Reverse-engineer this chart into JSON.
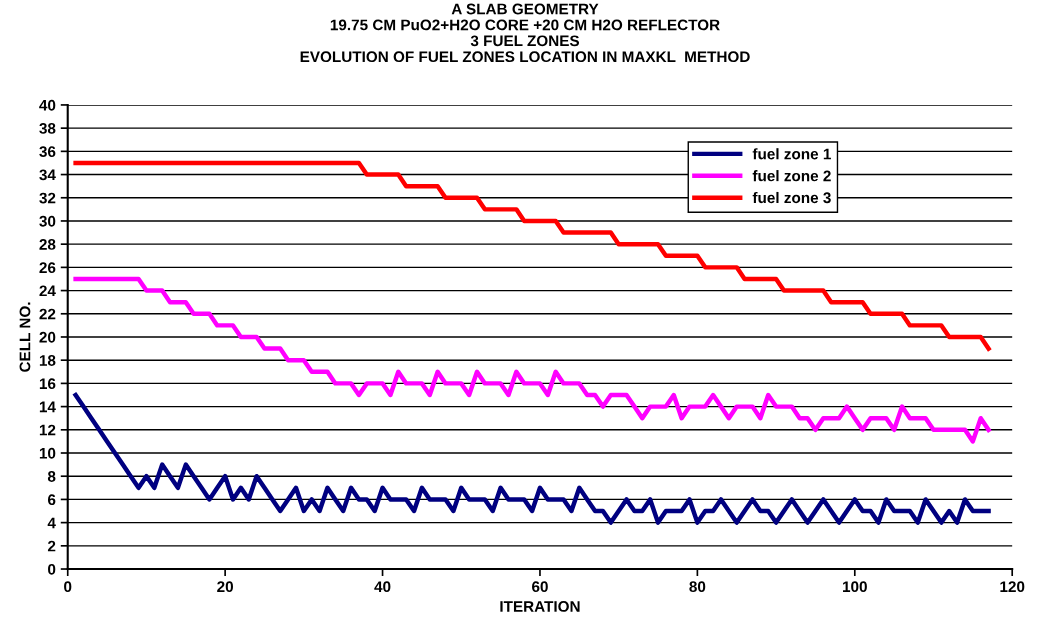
{
  "chart_data": {
    "type": "line",
    "title": "A SLAB GEOMETRY\n19.75 CM PuO2+H2O CORE +20 CM H2O REFLECTOR\n3 FUEL ZONES\nEVOLUTION OF FUEL ZONES LOCATION IN MAXKL  METHOD",
    "xlabel": "ITERATION",
    "ylabel": "CELL NO.",
    "x": [
      1,
      2,
      3,
      4,
      5,
      6,
      7,
      8,
      9,
      10,
      11,
      12,
      13,
      14,
      15,
      16,
      17,
      18,
      19,
      20,
      21,
      22,
      23,
      24,
      25,
      26,
      27,
      28,
      29,
      30,
      31,
      32,
      33,
      34,
      35,
      36,
      37,
      38,
      39,
      40,
      41,
      42,
      43,
      44,
      45,
      46,
      47,
      48,
      49,
      50,
      51,
      52,
      53,
      54,
      55,
      56,
      57,
      58,
      59,
      60,
      61,
      62,
      63,
      64,
      65,
      66,
      67,
      68,
      69,
      70,
      71,
      72,
      73,
      74,
      75,
      76,
      77,
      78,
      79,
      80,
      81,
      82,
      83,
      84,
      85,
      86,
      87,
      88,
      89,
      90,
      91,
      92,
      93,
      94,
      95,
      96,
      97,
      98,
      99,
      100,
      101,
      102,
      103,
      104,
      105,
      106,
      107,
      108,
      109,
      110,
      111,
      112,
      113,
      114,
      115,
      116,
      117
    ],
    "series": [
      {
        "name": "fuel zone 1",
        "color": "#000080",
        "values": [
          15,
          14,
          13,
          12,
          11,
          10,
          9,
          8,
          7,
          8,
          7,
          9,
          8,
          7,
          9,
          8,
          7,
          6,
          7,
          8,
          6,
          7,
          6,
          8,
          7,
          6,
          5,
          6,
          7,
          5,
          6,
          5,
          7,
          6,
          5,
          7,
          6,
          6,
          5,
          7,
          6,
          6,
          6,
          5,
          7,
          6,
          6,
          6,
          5,
          7,
          6,
          6,
          6,
          5,
          7,
          6,
          6,
          6,
          5,
          7,
          6,
          6,
          6,
          5,
          7,
          6,
          5,
          5,
          4,
          5,
          6,
          5,
          5,
          6,
          4,
          5,
          5,
          5,
          6,
          4,
          5,
          5,
          6,
          5,
          4,
          5,
          6,
          5,
          5,
          4,
          5,
          6,
          5,
          4,
          5,
          6,
          5,
          4,
          5,
          6,
          5,
          5,
          4,
          6,
          5,
          5,
          5,
          4,
          6,
          5,
          4,
          5,
          4,
          6,
          5,
          5,
          5
        ]
      },
      {
        "name": "fuel zone 2",
        "color": "#ff00ff",
        "values": [
          25,
          25,
          25,
          25,
          25,
          25,
          25,
          25,
          25,
          24,
          24,
          24,
          23,
          23,
          23,
          22,
          22,
          22,
          21,
          21,
          21,
          20,
          20,
          20,
          19,
          19,
          19,
          18,
          18,
          18,
          17,
          17,
          17,
          16,
          16,
          16,
          15,
          16,
          16,
          16,
          15,
          17,
          16,
          16,
          16,
          15,
          17,
          16,
          16,
          16,
          15,
          17,
          16,
          16,
          16,
          15,
          17,
          16,
          16,
          16,
          15,
          17,
          16,
          16,
          16,
          15,
          15,
          14,
          15,
          15,
          15,
          14,
          13,
          14,
          14,
          14,
          15,
          13,
          14,
          14,
          14,
          15,
          14,
          13,
          14,
          14,
          14,
          13,
          15,
          14,
          14,
          14,
          13,
          13,
          12,
          13,
          13,
          13,
          14,
          13,
          12,
          13,
          13,
          13,
          12,
          14,
          13,
          13,
          13,
          12,
          12,
          12,
          12,
          12,
          11,
          13,
          12
        ]
      },
      {
        "name": "fuel zone 3",
        "color": "#ff0000",
        "values": [
          35,
          35,
          35,
          35,
          35,
          35,
          35,
          35,
          35,
          35,
          35,
          35,
          35,
          35,
          35,
          35,
          35,
          35,
          35,
          35,
          35,
          35,
          35,
          35,
          35,
          35,
          35,
          35,
          35,
          35,
          35,
          35,
          35,
          35,
          35,
          35,
          35,
          34,
          34,
          34,
          34,
          34,
          33,
          33,
          33,
          33,
          33,
          32,
          32,
          32,
          32,
          32,
          31,
          31,
          31,
          31,
          31,
          30,
          30,
          30,
          30,
          30,
          29,
          29,
          29,
          29,
          29,
          29,
          29,
          28,
          28,
          28,
          28,
          28,
          28,
          27,
          27,
          27,
          27,
          27,
          26,
          26,
          26,
          26,
          26,
          25,
          25,
          25,
          25,
          25,
          24,
          24,
          24,
          24,
          24,
          24,
          23,
          23,
          23,
          23,
          23,
          22,
          22,
          22,
          22,
          22,
          21,
          21,
          21,
          21,
          21,
          20,
          20,
          20,
          20,
          20,
          19
        ]
      }
    ],
    "xlim": [
      0,
      120
    ],
    "xticks": [
      0,
      20,
      40,
      60,
      80,
      100,
      120
    ],
    "ylim": [
      0,
      40
    ],
    "yticks": [
      0,
      2,
      4,
      6,
      8,
      10,
      12,
      14,
      16,
      18,
      20,
      22,
      24,
      26,
      28,
      30,
      32,
      34,
      36,
      38,
      40
    ],
    "grid": "y",
    "legend": "top right",
    "marker": "none",
    "line_style": "solid"
  }
}
